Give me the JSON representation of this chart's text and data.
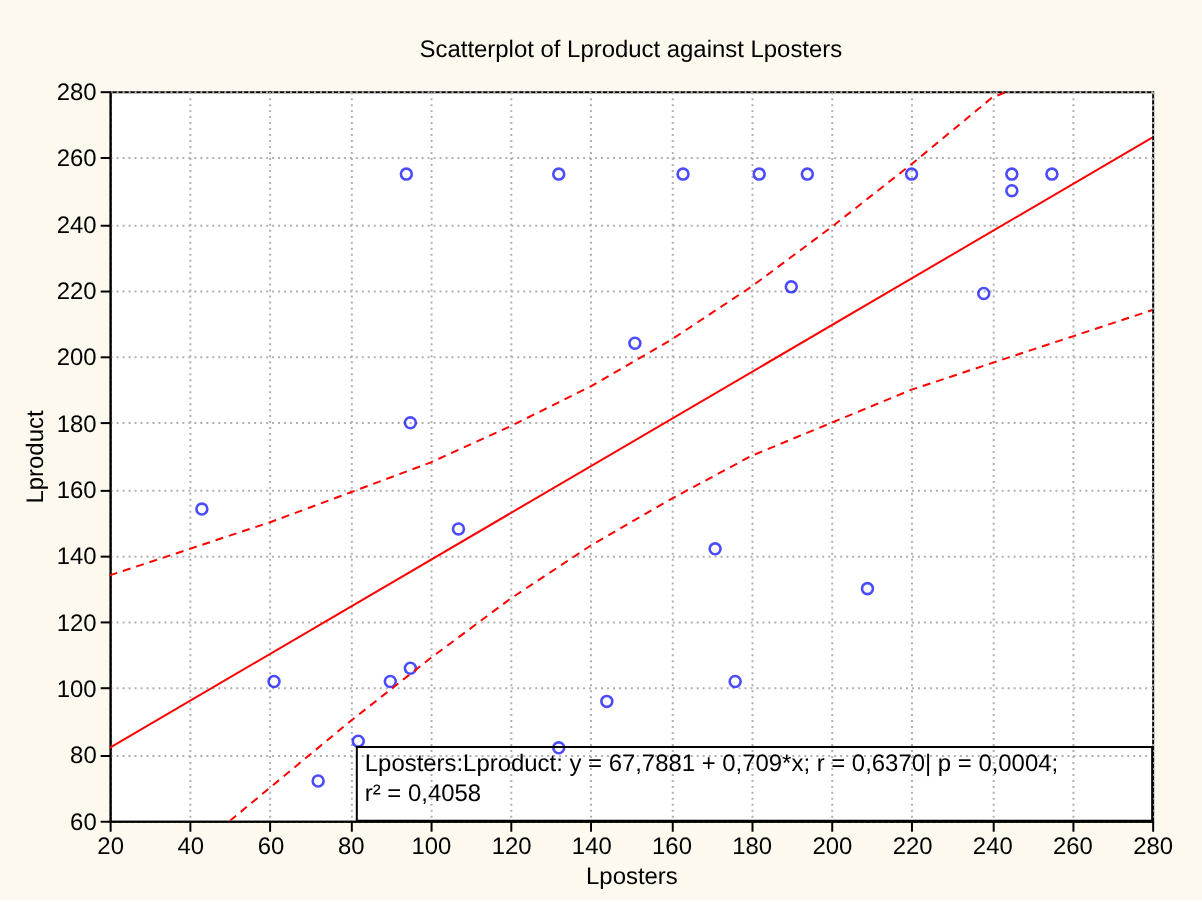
{
  "chart_data": {
    "type": "scatter",
    "title": "Scatterplot of Lproduct against Lposters",
    "xlabel": "Lposters",
    "ylabel": "Lproduct",
    "xlim": [
      20,
      280
    ],
    "xticks": [
      20,
      40,
      60,
      80,
      100,
      120,
      140,
      160,
      180,
      200,
      220,
      240,
      260,
      280
    ],
    "ylim": [
      60,
      280
    ],
    "yticks": [
      60,
      80,
      100,
      120,
      140,
      160,
      180,
      200,
      220,
      240,
      260,
      280
    ],
    "grid": true,
    "series": [
      {
        "type": "scatter",
        "color": "#0000ff",
        "marker": "circle",
        "x": [
          43,
          61,
          72,
          82,
          90,
          95,
          95,
          94,
          107,
          132,
          132,
          144,
          151,
          163,
          171,
          176,
          182,
          190,
          194,
          209,
          220,
          238,
          245,
          245,
          255
        ],
        "values": [
          154,
          102,
          72,
          84,
          102,
          106,
          180,
          255,
          148,
          82,
          255,
          96,
          204,
          255,
          142,
          102,
          255,
          221,
          255,
          130,
          255,
          219,
          255,
          250,
          255
        ]
      },
      {
        "type": "line",
        "color": "#ff0000",
        "line_style": "solid",
        "x": [
          20,
          280
        ],
        "values": [
          82,
          266
        ]
      },
      {
        "type": "line",
        "color": "#ff0000",
        "line_style": "dashed",
        "x": [
          20,
          40,
          60,
          80,
          100,
          120,
          140,
          160,
          180,
          200,
          220,
          240,
          244
        ],
        "values": [
          134,
          142,
          150,
          159,
          168,
          179,
          191,
          205,
          221,
          239,
          258,
          278,
          280
        ]
      },
      {
        "type": "line",
        "color": "#ff0000",
        "line_style": "dashed",
        "x": [
          50,
          60,
          80,
          100,
          120,
          140,
          160,
          180,
          200,
          220,
          240,
          260,
          280
        ],
        "values": [
          60,
          70,
          90,
          109,
          127,
          143,
          157,
          170,
          180,
          190,
          198,
          206,
          214
        ]
      }
    ],
    "annotations": [
      "Lposters:Lproduct:    y = 67,7881 + 0,709*x;  r = 0,6370| p = 0,0004;",
      "r² = 0,4058"
    ]
  }
}
